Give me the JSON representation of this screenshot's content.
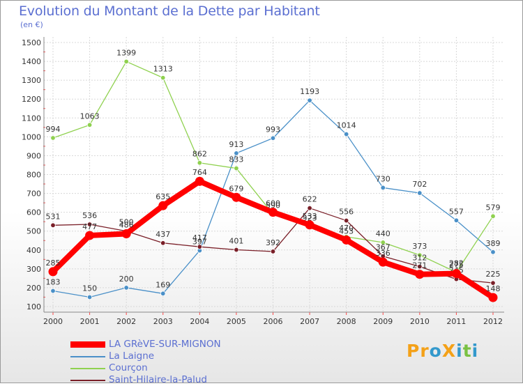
{
  "header": {
    "title": "Evolution du Montant de la Dette par Habitant",
    "unit": "(en €)"
  },
  "logo": {
    "text": "ProXiti",
    "colors": [
      "#f4a118",
      "#f4a118",
      "#3399cc",
      "#f4a118",
      "#3399cc",
      "#7ac143",
      "#3399cc"
    ]
  },
  "chart_data": {
    "type": "line",
    "x": [
      2000,
      2001,
      2002,
      2003,
      2004,
      2005,
      2006,
      2007,
      2008,
      2009,
      2010,
      2011,
      2012
    ],
    "ylim": [
      100,
      1500
    ],
    "yticks": [
      100,
      200,
      300,
      400,
      500,
      600,
      700,
      800,
      900,
      1000,
      1100,
      1200,
      1300,
      1400,
      1500
    ],
    "grid": true,
    "legend_position": "bottom-left",
    "series": [
      {
        "name": "La Laigne",
        "color": "#4a90c8",
        "values": [
          183,
          150,
          200,
          169,
          397,
          913,
          993,
          1193,
          1014,
          730,
          702,
          557,
          389
        ]
      },
      {
        "name": "Courçon",
        "color": "#8fd14f",
        "values": [
          994,
          1063,
          1399,
          1313,
          862,
          833,
          590,
          523,
          470,
          440,
          373,
          282,
          579
        ]
      },
      {
        "name": "Saint-Hilaire-la-Palud",
        "color": "#7a1f28",
        "values": [
          531,
          536,
          500,
          437,
          417,
          401,
          392,
          622,
          556,
          367,
          312,
          245,
          225
        ]
      },
      {
        "name": "LA GRèVE-SUR-MIGNON",
        "color": "#ff0000",
        "values": [
          285,
          477,
          486,
          635,
          764,
          679,
          600,
          533,
          453,
          336,
          271,
          275,
          148
        ]
      }
    ]
  }
}
